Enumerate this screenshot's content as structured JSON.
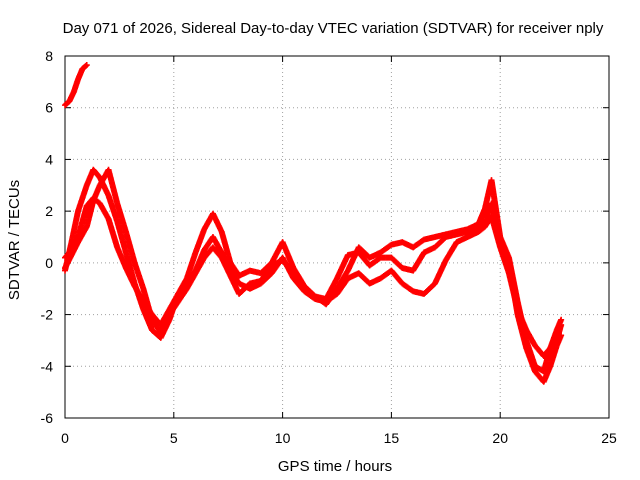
{
  "chart_data": {
    "type": "scatter",
    "title": "Day 071 of 2026, Sidereal Day-to-day VTEC variation (SDTVAR) for receiver nply",
    "xlabel": "GPS time / hours",
    "ylabel": "SDTVAR / TECUs",
    "xlim": [
      0,
      25
    ],
    "ylim": [
      -6,
      8
    ],
    "xticks": [
      0,
      5,
      10,
      15,
      20,
      25
    ],
    "yticks": [
      -6,
      -4,
      -2,
      0,
      2,
      4,
      6,
      8
    ],
    "grid": true,
    "marker": "+",
    "color": "#ff0000",
    "series": [
      {
        "name": "segment-1",
        "x": [
          0.0,
          0.2,
          0.4,
          0.6,
          0.8,
          1.0
        ],
        "y": [
          6.1,
          6.25,
          6.6,
          7.1,
          7.5,
          7.65
        ]
      },
      {
        "name": "trace-a",
        "x": [
          0.0,
          0.3,
          0.6,
          1.0,
          1.3,
          1.6,
          2.0,
          2.4,
          2.8,
          3.2,
          3.6,
          4.0,
          4.4,
          4.8,
          5.2,
          5.6,
          6.0,
          6.4,
          6.8,
          7.2,
          7.6,
          8.0,
          8.5,
          9.0,
          9.5,
          10.0,
          10.5,
          11.0,
          11.5,
          12.0,
          12.5,
          13.0,
          13.5,
          14.0,
          14.5,
          15.0,
          15.5,
          16.0,
          16.5,
          17.0,
          17.5,
          18.0,
          18.5,
          19.0,
          19.3,
          19.6,
          20.0,
          20.4,
          20.8,
          21.2,
          21.6,
          22.0,
          22.3,
          22.6,
          22.8
        ],
        "y": [
          -0.3,
          0.8,
          2.0,
          3.0,
          3.6,
          3.3,
          2.6,
          1.6,
          0.4,
          -0.8,
          -1.8,
          -2.6,
          -2.9,
          -2.2,
          -1.2,
          -0.6,
          0.4,
          1.3,
          1.9,
          1.2,
          0.0,
          -0.5,
          -0.3,
          -0.4,
          0.0,
          0.8,
          -0.2,
          -0.9,
          -1.3,
          -1.6,
          -1.0,
          -0.3,
          0.6,
          0.2,
          0.4,
          0.7,
          0.8,
          0.6,
          0.9,
          1.0,
          1.1,
          1.2,
          1.3,
          1.5,
          2.1,
          3.2,
          1.0,
          0.2,
          -1.5,
          -3.0,
          -4.0,
          -4.2,
          -3.3,
          -2.6,
          -2.2
        ]
      },
      {
        "name": "trace-b",
        "x": [
          0.0,
          0.3,
          0.6,
          1.0,
          1.3,
          1.6,
          2.0,
          2.4,
          2.8,
          3.2,
          3.6,
          4.0,
          4.4,
          4.8,
          5.2,
          5.6,
          6.0,
          6.4,
          6.8,
          7.2,
          7.6,
          8.0,
          8.5,
          9.0,
          9.5,
          10.0,
          10.5,
          11.0,
          11.5,
          12.0,
          12.5,
          13.0,
          13.5,
          14.0,
          14.5,
          15.0,
          15.5,
          16.0,
          16.5,
          17.0,
          17.5,
          18.0,
          18.5,
          19.0,
          19.3,
          19.6,
          20.0,
          20.4,
          20.8,
          21.2,
          21.6,
          22.0,
          22.3,
          22.6,
          22.8
        ],
        "y": [
          0.2,
          0.5,
          1.0,
          2.2,
          2.5,
          2.3,
          1.7,
          0.6,
          -0.2,
          -0.9,
          -1.5,
          -2.0,
          -2.4,
          -1.8,
          -1.2,
          -0.9,
          -0.3,
          0.5,
          1.0,
          0.4,
          -0.3,
          -0.8,
          -1.0,
          -0.8,
          -0.4,
          0.2,
          -0.6,
          -1.1,
          -1.4,
          -1.5,
          -1.2,
          -0.6,
          -0.4,
          -0.8,
          -0.6,
          -0.3,
          -0.8,
          -1.1,
          -1.2,
          -0.8,
          0.1,
          0.8,
          1.0,
          1.2,
          1.4,
          1.8,
          0.6,
          -0.4,
          -1.8,
          -2.6,
          -3.2,
          -3.6,
          -3.3,
          -3.0,
          -2.4
        ]
      },
      {
        "name": "trace-c",
        "x": [
          0.0,
          0.3,
          0.6,
          1.0,
          1.3,
          1.6,
          2.0,
          2.4,
          2.8,
          3.2,
          3.6,
          4.0,
          4.4,
          4.8,
          5.2,
          5.6,
          6.0,
          6.4,
          6.8,
          7.2,
          7.6,
          8.0,
          8.5,
          9.0,
          9.5,
          10.0,
          10.5,
          11.0,
          11.5,
          12.0,
          12.5,
          13.0,
          13.5,
          14.0,
          14.5,
          15.0,
          15.5,
          16.0,
          16.5,
          17.0,
          17.5,
          18.0,
          18.5,
          19.0,
          19.3,
          19.6,
          20.0,
          20.4,
          20.8,
          21.2,
          21.6,
          22.0,
          22.3,
          22.6,
          22.8
        ],
        "y": [
          -0.2,
          0.3,
          0.8,
          1.4,
          2.4,
          3.0,
          3.6,
          2.3,
          1.2,
          0.0,
          -1.0,
          -2.2,
          -2.7,
          -2.0,
          -1.5,
          -1.0,
          -0.4,
          0.2,
          0.6,
          0.2,
          -0.5,
          -1.2,
          -0.8,
          -0.7,
          -0.1,
          0.1,
          -0.4,
          -1.0,
          -1.3,
          -1.4,
          -0.6,
          0.3,
          0.4,
          -0.1,
          0.2,
          0.2,
          -0.2,
          -0.3,
          0.4,
          0.6,
          1.0,
          1.1,
          1.2,
          1.4,
          1.6,
          2.3,
          0.8,
          0.0,
          -2.0,
          -3.3,
          -4.2,
          -4.6,
          -4.0,
          -3.2,
          -2.8
        ]
      }
    ]
  }
}
